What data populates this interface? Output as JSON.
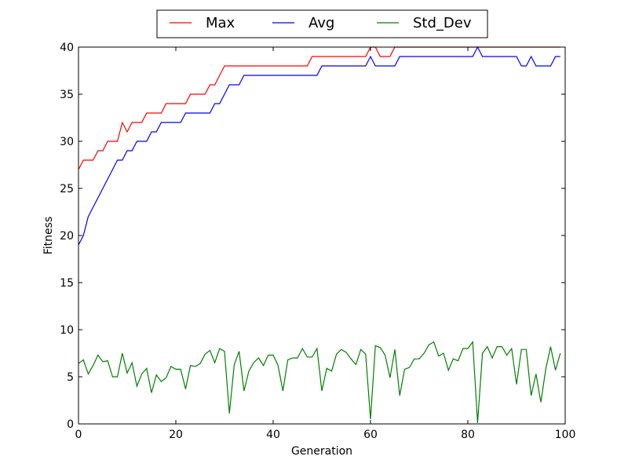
{
  "chart_data": {
    "type": "line",
    "xlabel": "Generation",
    "ylabel": "Fitness",
    "xlim": [
      0,
      100
    ],
    "ylim": [
      0,
      40
    ],
    "xticks": [
      0,
      20,
      40,
      60,
      80,
      100
    ],
    "yticks": [
      0,
      5,
      10,
      15,
      20,
      25,
      30,
      35,
      40
    ],
    "legend_position": "top-center-outside",
    "grid": false,
    "x": [
      0,
      1,
      2,
      3,
      4,
      5,
      6,
      7,
      8,
      9,
      10,
      11,
      12,
      13,
      14,
      15,
      16,
      17,
      18,
      19,
      20,
      21,
      22,
      23,
      24,
      25,
      26,
      27,
      28,
      29,
      30,
      31,
      32,
      33,
      34,
      35,
      36,
      37,
      38,
      39,
      40,
      41,
      42,
      43,
      44,
      45,
      46,
      47,
      48,
      49,
      50,
      51,
      52,
      53,
      54,
      55,
      56,
      57,
      58,
      59,
      60,
      61,
      62,
      63,
      64,
      65,
      66,
      67,
      68,
      69,
      70,
      71,
      72,
      73,
      74,
      75,
      76,
      77,
      78,
      79,
      80,
      81,
      82,
      83,
      84,
      85,
      86,
      87,
      88,
      89,
      90,
      91,
      92,
      93,
      94,
      95,
      96,
      97,
      98,
      99
    ],
    "series": [
      {
        "name": "Max",
        "color": "#ff0000",
        "values": [
          27,
          28,
          28,
          28,
          29,
          29,
          30,
          30,
          30,
          32,
          31,
          32,
          32,
          32,
          33,
          33,
          33,
          33,
          34,
          34,
          34,
          34,
          34,
          35,
          35,
          35,
          35,
          36,
          36,
          37,
          38,
          38,
          38,
          38,
          38,
          38,
          38,
          38,
          38,
          38,
          38,
          38,
          38,
          38,
          38,
          38,
          38,
          38,
          39,
          39,
          39,
          39,
          39,
          39,
          39,
          39,
          39,
          39,
          39,
          39,
          40,
          40,
          39,
          39,
          39,
          40,
          40,
          40,
          40,
          40,
          40,
          40,
          40,
          40,
          40,
          40,
          40,
          40,
          40,
          40,
          40,
          40,
          40,
          40,
          40,
          40,
          40,
          40,
          40,
          40,
          40,
          40,
          40,
          40,
          40,
          40,
          40,
          40,
          40,
          40
        ]
      },
      {
        "name": "Avg",
        "color": "#0000ff",
        "values": [
          19,
          20,
          22,
          23,
          24,
          25,
          26,
          27,
          28,
          28,
          29,
          29,
          30,
          30,
          30,
          31,
          31,
          32,
          32,
          32,
          32,
          32,
          33,
          33,
          33,
          33,
          33,
          33,
          34,
          34,
          35,
          36,
          36,
          36,
          37,
          37,
          37,
          37,
          37,
          37,
          37,
          37,
          37,
          37,
          37,
          37,
          37,
          37,
          37,
          37,
          38,
          38,
          38,
          38,
          38,
          38,
          38,
          38,
          38,
          38,
          39,
          38,
          38,
          38,
          38,
          38,
          39,
          39,
          39,
          39,
          39,
          39,
          39,
          39,
          39,
          39,
          39,
          39,
          39,
          39,
          39,
          39,
          40,
          39,
          39,
          39,
          39,
          39,
          39,
          39,
          39,
          38,
          38,
          39,
          38,
          38,
          38,
          38,
          39,
          39
        ]
      },
      {
        "name": "Std_Dev",
        "color": "#008000",
        "values": [
          6.4,
          6.8,
          5.3,
          6.2,
          7.3,
          6.6,
          6.7,
          5.0,
          5.0,
          7.5,
          5.4,
          6.5,
          4.0,
          5.3,
          5.9,
          3.3,
          5.2,
          4.5,
          4.9,
          6.1,
          5.8,
          5.8,
          3.7,
          6.2,
          6.1,
          6.4,
          7.4,
          7.8,
          6.5,
          8.0,
          7.7,
          1.1,
          6.3,
          7.7,
          3.5,
          5.6,
          6.5,
          7.0,
          6.2,
          7.3,
          7.3,
          6.2,
          3.5,
          6.8,
          7.0,
          7.0,
          8.0,
          7.1,
          7.1,
          8.0,
          3.5,
          5.9,
          5.6,
          7.4,
          7.9,
          7.6,
          6.9,
          6.3,
          7.9,
          7.4,
          0.5,
          8.3,
          8.1,
          7.3,
          4.9,
          7.9,
          3.0,
          5.8,
          6.0,
          6.9,
          6.9,
          7.5,
          8.4,
          8.7,
          7.2,
          7.5,
          5.7,
          6.9,
          6.7,
          8.0,
          8.0,
          8.7,
          0.1,
          7.5,
          8.2,
          7.0,
          8.2,
          8.2,
          7.3,
          8.0,
          4.2,
          7.9,
          7.9,
          3.0,
          5.3,
          2.3,
          5.8,
          8.2,
          5.7,
          7.5
        ]
      }
    ]
  }
}
